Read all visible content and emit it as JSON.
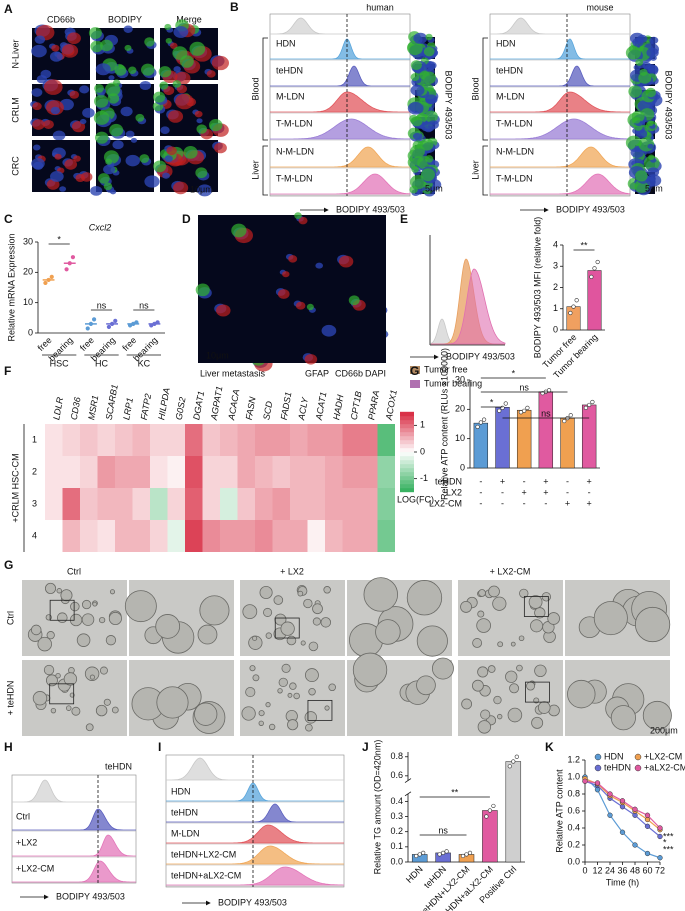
{
  "panels": {
    "A": {
      "label": "A",
      "columns": [
        "CD66b",
        "BODIPY",
        "Merge"
      ],
      "rows": [
        "N-Liver",
        "CRLM",
        "CRC"
      ],
      "scale": "10μm"
    },
    "B": {
      "label": "B",
      "plots": [
        {
          "title": "human"
        },
        {
          "title": "mouse"
        }
      ],
      "groups": [
        "Blood",
        "Liver"
      ],
      "rows": [
        "HDN",
        "teHDN",
        "M-LDN",
        "T-M-LDN",
        "N-M-LDN",
        "T-M-LDN"
      ],
      "colors": [
        "#5aa6dc",
        "#5b5fbf",
        "#e2575d",
        "#9b7fd6",
        "#f0a85a",
        "#e377b9"
      ],
      "side_label": "BODIPY 493/503",
      "x_label": "BODIPY 493/503",
      "scale": "5μm"
    },
    "C": {
      "label": "C",
      "chart_data": {
        "type": "dot-plot",
        "title": "Cxcl2",
        "y_label": "Relative mRNA Expression",
        "categories": [
          "free",
          "bearing",
          "free",
          "bearing",
          "free",
          "bearing"
        ],
        "groups": [
          "HSC",
          "HC",
          "KC"
        ],
        "values": [
          17.5,
          23,
          3,
          3,
          3,
          3
        ],
        "points": [
          [
            16.5,
            17.5,
            18.5
          ],
          [
            21,
            23,
            25
          ],
          [
            1.5,
            3,
            4.5
          ],
          [
            2,
            3,
            4
          ],
          [
            2.5,
            3,
            3.5
          ],
          [
            2.5,
            3,
            3.5
          ]
        ],
        "colors": [
          "#f0a050",
          "#e05aa0",
          "#5b9bd5",
          "#6a6fd4",
          "#5b9bd5",
          "#6a6fd4"
        ],
        "ylim": [
          0,
          30
        ],
        "yticks": [
          0,
          10,
          20,
          30
        ],
        "significance": [
          "*",
          "ns",
          "ns"
        ]
      }
    },
    "D": {
      "label": "D",
      "caption": "Liver metastasis",
      "stains": [
        "GFAP",
        "CD66b",
        "DAPI"
      ],
      "scale": "10μm"
    },
    "E": {
      "label": "E",
      "histogram": {
        "x_label": "BODIPY 493/503",
        "legend": [
          "Tumor free",
          "Tumor bearing"
        ]
      },
      "chart_data": {
        "type": "bar",
        "y_label": "BODIPY 493/503 MFI (relative fold)",
        "categories": [
          "Tumor free",
          "Tumor bearing"
        ],
        "values": [
          1.1,
          2.8
        ],
        "points": [
          [
            0.8,
            1.1,
            1.4
          ],
          [
            2.5,
            2.9,
            3.2
          ]
        ],
        "colors": [
          "#f0a060",
          "#e0559e"
        ],
        "ylim": [
          0,
          4
        ],
        "yticks": [
          0,
          1,
          2,
          3,
          4
        ],
        "significance": [
          "**"
        ]
      }
    },
    "F": {
      "label": "F",
      "genes": [
        "LDLR",
        "CD36",
        "MSR1",
        "SCARB1",
        "LRP1",
        "FATP2",
        "HILPDA",
        "G0S2",
        "DGAT1",
        "AGPAT1",
        "ACACA",
        "FASN",
        "SCD",
        "FADS1",
        "ACLY",
        "ACAT1",
        "HADH",
        "CPT1B",
        "PPARA",
        "ACOX1"
      ],
      "rows": [
        "1",
        "2",
        "3",
        "4"
      ],
      "row_title": "+CRLM HSC-CM",
      "values": [
        [
          0.2,
          0.3,
          0.4,
          0.3,
          0.4,
          0.5,
          0.3,
          0.3,
          1.0,
          0.4,
          0.5,
          0.6,
          0.7,
          0.7,
          0.6,
          0.7,
          0.7,
          0.9,
          0.9,
          -1.2
        ],
        [
          0.2,
          0.2,
          0.3,
          0.7,
          0.6,
          0.6,
          0.2,
          0.1,
          1.2,
          0.3,
          0.3,
          0.6,
          0.5,
          0.4,
          0.5,
          0.5,
          0.6,
          0.7,
          0.7,
          -0.8
        ],
        [
          0.2,
          1.0,
          0.4,
          0.5,
          0.5,
          0.3,
          -0.5,
          0.3,
          1.1,
          0.3,
          -0.3,
          0.4,
          0.6,
          0.7,
          0.5,
          0.5,
          0.6,
          0.6,
          0.6,
          -0.9
        ],
        [
          0.0,
          0.5,
          0.3,
          0.2,
          0.5,
          0.5,
          0.3,
          -0.2,
          1.3,
          0.8,
          0.7,
          0.7,
          0.8,
          0.6,
          0.6,
          0.1,
          0.5,
          0.6,
          0.6,
          -1.0
        ]
      ],
      "clim": [
        -1.5,
        1.5
      ],
      "colorbar": {
        "ticks": [
          1,
          0,
          -1
        ],
        "label": "LOG(FC)"
      }
    },
    "G1": {
      "label": "G",
      "chart_data": {
        "type": "bar",
        "y_label": "Relative ATP content (RLUs ×100000)",
        "values": [
          15.3,
          20.7,
          19.7,
          26,
          17,
          21.5
        ],
        "points": [
          [
            14,
            15.5,
            16.5
          ],
          [
            19.5,
            20.5,
            22
          ],
          [
            19,
            19.5,
            20.5
          ],
          [
            25.5,
            26,
            26.5
          ],
          [
            16,
            17,
            18
          ],
          [
            20.5,
            21.5,
            22.5
          ]
        ],
        "colors": [
          "#5b9bd5",
          "#6a6fd4",
          "#f0a050",
          "#e05aa0",
          "#f0a050",
          "#e05aa0"
        ],
        "ylim": [
          0,
          30
        ],
        "yticks": [
          0,
          10,
          20,
          30
        ],
        "conditions": [
          {
            "name": "teHDN",
            "signs": [
              "-",
              "+",
              "-",
              "+",
              "-",
              "+"
            ]
          },
          {
            "name": "LX2",
            "signs": [
              "-",
              "-",
              "+",
              "+",
              "-",
              "-"
            ]
          },
          {
            "name": "LX2-CM",
            "signs": [
              "-",
              "-",
              "-",
              "-",
              "+",
              "+"
            ]
          }
        ],
        "significance": [
          "*",
          "ns",
          "*",
          "ns"
        ]
      }
    },
    "G2": {
      "label": "G",
      "columns": [
        "Ctrl",
        "+ LX2",
        "+ LX2-CM"
      ],
      "rows": [
        "Ctrl",
        "+ teHDN"
      ],
      "scale": "200μm"
    },
    "H": {
      "label": "H",
      "title": "teHDN",
      "rows": [
        "Ctrl",
        "+LX2",
        "+LX2-CM"
      ],
      "x_label": "BODIPY 493/503"
    },
    "I": {
      "label": "I",
      "rows": [
        "HDN",
        "teHDN",
        "M-LDN",
        "teHDN+LX2-CM",
        "teHDN+aLX2-CM"
      ],
      "x_label": "BODIPY 493/503"
    },
    "J": {
      "label": "J",
      "chart_data": {
        "type": "bar",
        "y_label": "Relative TG amount (OD=420nm)",
        "categories": [
          "HDN",
          "teHDN",
          "teHDN+LX2-CM",
          "teHDN+aLX2-CM",
          "Positive Ctrl"
        ],
        "values": [
          0.05,
          0.06,
          0.05,
          0.34,
          0.75
        ],
        "points": [
          [
            0.04,
            0.05,
            0.06
          ],
          [
            0.05,
            0.06,
            0.07
          ],
          [
            0.04,
            0.05,
            0.06
          ],
          [
            0.3,
            0.34,
            0.37
          ],
          [
            0.7,
            0.75,
            0.8
          ]
        ],
        "colors": [
          "#5b9bd5",
          "#6a6fd4",
          "#f0a050",
          "#e05aa0",
          "#cfcfcf"
        ],
        "ylim": [
          0,
          0.85
        ],
        "ybreak": [
          0.45,
          0.55
        ],
        "yticks": [
          {
            "value": 0,
            "label": "0.0"
          },
          0.1,
          0.2,
          0.3,
          0.4,
          0.6,
          0.8
        ],
        "significance": [
          "**",
          "ns"
        ]
      }
    },
    "K": {
      "label": "K",
      "chart_data": {
        "type": "line",
        "y_label": "Relative ATP content",
        "x_label": "Time (h)",
        "x": [
          0,
          12,
          24,
          36,
          48,
          60,
          72
        ],
        "series": [
          {
            "name": "HDN",
            "color": "#5b9bd5",
            "values": [
              1.0,
              0.85,
              0.55,
              0.35,
              0.2,
              0.1,
              0.05
            ]
          },
          {
            "name": "teHDN",
            "color": "#6a6fd4",
            "values": [
              0.95,
              0.9,
              0.75,
              0.65,
              0.55,
              0.42,
              0.3
            ]
          },
          {
            "name": "+LX2-CM",
            "color": "#f0a050",
            "values": [
              0.98,
              0.92,
              0.78,
              0.7,
              0.6,
              0.5,
              0.38
            ]
          },
          {
            "name": "+aLX2-CM",
            "color": "#e05aa0",
            "values": [
              0.95,
              0.93,
              0.8,
              0.72,
              0.62,
              0.55,
              0.4
            ]
          }
        ],
        "xlim": [
          0,
          72
        ],
        "xticks": [
          0,
          12,
          24,
          36,
          48,
          60,
          72
        ],
        "ylim": [
          0,
          1.2
        ],
        "yticks": [
          {
            "value": 0,
            "label": "0.0"
          },
          0.2,
          0.4,
          0.6,
          0.8,
          {
            "value": 1,
            "label": "1.0"
          },
          1.2
        ],
        "end_labels": [
          "***",
          "*",
          "***"
        ]
      }
    }
  }
}
